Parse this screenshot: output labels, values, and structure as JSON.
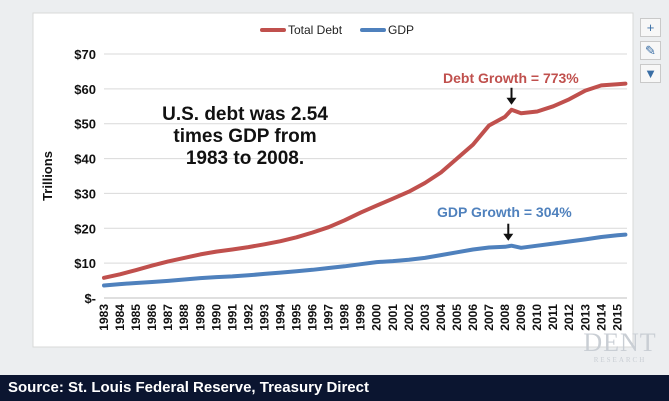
{
  "chart_data": {
    "type": "line",
    "title": "",
    "xlabel": "",
    "ylabel": "Trillions",
    "ylim": [
      0,
      70
    ],
    "yticks": [
      0,
      10,
      20,
      30,
      40,
      50,
      60,
      70
    ],
    "ytick_labels": [
      "$-",
      "$10",
      "$20",
      "$30",
      "$40",
      "$50",
      "$60",
      "$70"
    ],
    "x": [
      1983,
      1984,
      1985,
      1986,
      1987,
      1988,
      1989,
      1990,
      1991,
      1992,
      1993,
      1994,
      1995,
      1996,
      1997,
      1998,
      1999,
      2000,
      2001,
      2002,
      2003,
      2004,
      2005,
      2006,
      2007,
      2008,
      2009,
      2010,
      2011,
      2012,
      2013,
      2014,
      2015
    ],
    "xlim": [
      1983,
      2015.6
    ],
    "legend_position": "top-center",
    "series": [
      {
        "name": "Total Debt",
        "color": "#c0504d",
        "x": [
          1983,
          1984,
          1985,
          1986,
          1987,
          1988,
          1989,
          1990,
          1991,
          1992,
          1993,
          1994,
          1995,
          1996,
          1997,
          1998,
          1999,
          2000,
          2001,
          2002,
          2003,
          2004,
          2005,
          2006,
          2007,
          2008,
          2008.4,
          2009,
          2010,
          2011,
          2012,
          2013,
          2014,
          2015,
          2015.5
        ],
        "values": [
          5.8,
          6.8,
          8.0,
          9.3,
          10.5,
          11.5,
          12.5,
          13.3,
          13.9,
          14.6,
          15.4,
          16.3,
          17.4,
          18.8,
          20.3,
          22.3,
          24.5,
          26.5,
          28.5,
          30.5,
          33.0,
          36.0,
          40.0,
          44.0,
          49.5,
          52.0,
          54.0,
          53.0,
          53.5,
          55.0,
          57.0,
          59.5,
          61.0,
          61.3,
          61.5
        ]
      },
      {
        "name": "GDP",
        "color": "#4f81bd",
        "x": [
          1983,
          1984,
          1985,
          1986,
          1987,
          1988,
          1989,
          1990,
          1991,
          1992,
          1993,
          1994,
          1995,
          1996,
          1997,
          1998,
          1999,
          2000,
          2001,
          2002,
          2003,
          2004,
          2005,
          2006,
          2007,
          2008,
          2008.4,
          2009,
          2010,
          2011,
          2012,
          2013,
          2014,
          2015,
          2015.5
        ],
        "values": [
          3.6,
          4.0,
          4.3,
          4.6,
          4.9,
          5.3,
          5.7,
          6.0,
          6.2,
          6.5,
          6.9,
          7.3,
          7.7,
          8.1,
          8.6,
          9.1,
          9.7,
          10.3,
          10.6,
          11.0,
          11.5,
          12.3,
          13.1,
          13.9,
          14.5,
          14.7,
          15.0,
          14.4,
          15.0,
          15.6,
          16.2,
          16.8,
          17.5,
          18.0,
          18.2
        ]
      }
    ],
    "annotations": [
      {
        "id": "main_note",
        "lines": [
          "U.S. debt was 2.54",
          "times GDP from",
          "1983 to 2008."
        ],
        "color": "#111111"
      },
      {
        "id": "debt_growth",
        "text": "Debt Growth = 773%",
        "color": "#c0504d",
        "arrow_to": [
          2008.4,
          54
        ]
      },
      {
        "id": "gdp_growth",
        "text": "GDP Growth = 304%",
        "color": "#4f81bd",
        "arrow_to": [
          2008.2,
          15
        ]
      }
    ]
  },
  "chart_tools": {
    "add_label": "+",
    "style_label": "✎",
    "filter_label": "▼"
  },
  "footer": {
    "source_text": "Source: St. Louis Federal Reserve, Treasury Direct"
  },
  "logo": {
    "name": "DENT",
    "tagline": "RESEARCH"
  }
}
